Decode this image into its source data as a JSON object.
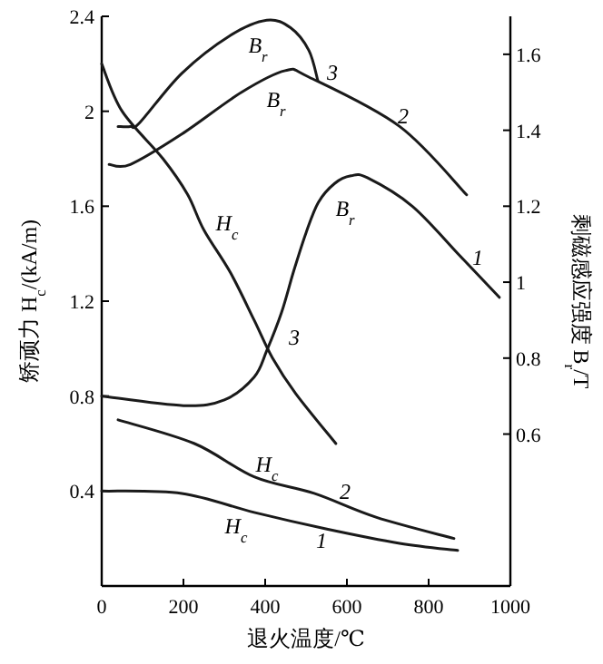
{
  "chart_data": {
    "type": "line",
    "xlabel": "退火温度/℃",
    "ylabel": "矫顽力 H$_{c}$/(kA/m)",
    "y2label": "剩磁感应强度 B$_{r}$/T",
    "xlim": [
      0,
      1000
    ],
    "xticks": [
      0,
      200,
      400,
      600,
      800,
      1000
    ],
    "ylim": [
      0,
      2.4
    ],
    "yticks": [
      0.4,
      0.8,
      1.2,
      1.6,
      2.0,
      2.4
    ],
    "y2lim": [
      0.2,
      1.7
    ],
    "y2ticks": [
      0.6,
      0.8,
      1.0,
      1.2,
      1.4,
      1.6
    ],
    "grid": false,
    "marker": "none",
    "line_style": "solid",
    "series": [
      {
        "color": "#1a1a1a",
        "x": [
          0,
          50,
          150,
          210,
          250,
          315,
          373,
          418,
          475,
          573
        ],
        "values": [
          2.2,
          2.0,
          1.8,
          1.65,
          1.5,
          1.32,
          1.12,
          0.96,
          0.81,
          0.6
        ]
      },
      {
        "color": "#1a1a1a",
        "axis": "y2",
        "x": [
          40,
          70,
          93,
          196,
          315,
          404,
          462,
          507,
          529
        ],
        "values": [
          1.41,
          1.41,
          1.42,
          1.55,
          1.65,
          1.69,
          1.67,
          1.61,
          1.53
        ]
      },
      {
        "color": "#1a1a1a",
        "axis": "y2",
        "x": [
          18,
          70,
          196,
          342,
          449,
          507,
          729,
          893
        ],
        "values": [
          1.31,
          1.31,
          1.39,
          1.5,
          1.557,
          1.54,
          1.41,
          1.23
        ]
      },
      {
        "color": "#1a1a1a",
        "axis": "y2",
        "x": [
          0,
          200,
          300,
          373,
          404,
          440,
          470,
          500,
          530,
          570,
          610,
          650,
          760,
          876,
          973
        ],
        "values": [
          0.7,
          0.675,
          0.69,
          0.75,
          0.82,
          0.92,
          1.03,
          1.13,
          1.21,
          1.26,
          1.28,
          1.275,
          1.2,
          1.07,
          0.96
        ]
      },
      {
        "color": "#1a1a1a",
        "x": [
          40,
          227,
          373,
          520,
          671,
          862
        ],
        "values": [
          0.7,
          0.6,
          0.46,
          0.39,
          0.29,
          0.2
        ]
      },
      {
        "color": "#1a1a1a",
        "x": [
          0,
          196,
          373,
          551,
          729,
          871
        ],
        "values": [
          0.4,
          0.39,
          0.31,
          0.24,
          0.18,
          0.15
        ]
      }
    ],
    "annotations": [
      "B$_{r}$",
      "B$_{r}$",
      "3",
      "2",
      "B$_{r}$",
      "1",
      "H$_{c}$",
      "3",
      "H$_{c}$",
      "2",
      "H$_{c}$",
      "1"
    ]
  }
}
